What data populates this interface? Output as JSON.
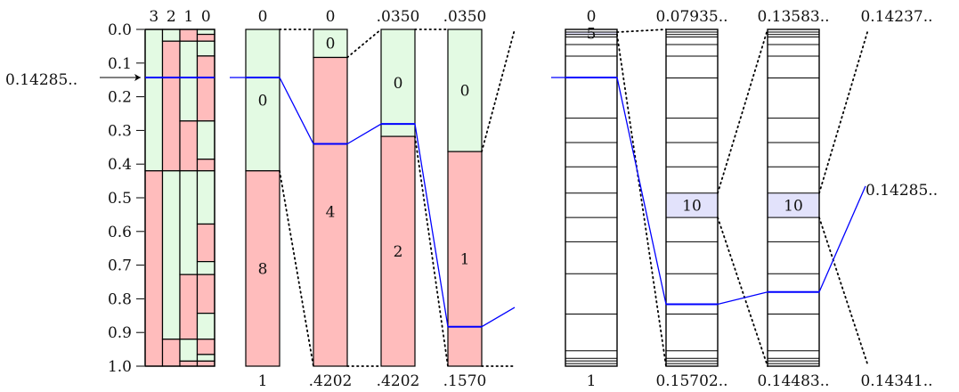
{
  "colors": {
    "green": "#e3fae3",
    "red": "#ffbcbc",
    "blue": "#0000ff",
    "highlight": "#e2e2fb",
    "line": "#000000"
  },
  "axis": {
    "ticks": [
      "0.0",
      "0.1",
      "0.2",
      "0.3",
      "0.4",
      "0.5",
      "0.6",
      "0.7",
      "0.8",
      "0.9",
      "1.0"
    ],
    "input_label": "0.14285..",
    "input_value": 0.142857
  },
  "bit_strip": {
    "headers": [
      "3",
      "2",
      "1",
      "0"
    ],
    "columns": [
      {
        "breaks": [
          0,
          0.42,
          1
        ],
        "colors": [
          "green",
          "red"
        ]
      },
      {
        "breaks": [
          0,
          0.035,
          0.42,
          0.92,
          1
        ],
        "colors": [
          "green",
          "red",
          "green",
          "red"
        ]
      },
      {
        "breaks": [
          0,
          0.035,
          0.272,
          0.42,
          0.728,
          0.92,
          0.985,
          1
        ],
        "colors": [
          "red",
          "green",
          "red",
          "green",
          "red",
          "green",
          "red"
        ]
      },
      {
        "breaks": [
          0,
          0.0147,
          0.035,
          0.079,
          0.272,
          0.3855,
          0.42,
          0.578,
          0.6895,
          0.728,
          0.843,
          0.92,
          0.9653,
          0.985,
          1
        ],
        "colors": [
          "green",
          "red",
          "green",
          "red",
          "green",
          "red",
          "green",
          "red",
          "green",
          "red",
          "green",
          "red",
          "green",
          "red"
        ]
      }
    ]
  },
  "binary_bars": [
    {
      "top": "0",
      "bottom": "1",
      "split": 0.42,
      "upper": "0",
      "lower": "8",
      "line_at": 0.142857
    },
    {
      "top": "0",
      "bottom": ".4202",
      "split": 0.0833,
      "upper": "0",
      "lower": "4",
      "line_at": 0.34
    },
    {
      "top": ".0350",
      "bottom": ".4202",
      "split": 0.3177,
      "upper": "0",
      "lower": "2",
      "line_at": 0.2808
    },
    {
      "top": ".0350",
      "bottom": ".1570",
      "split": 0.3628,
      "upper": "0",
      "lower": "1",
      "line_at": 0.8828
    }
  ],
  "decimal_bars": [
    {
      "top": "0",
      "bottom": "1",
      "digit": "5",
      "digit_index": 1,
      "line_at": 0.142857
    },
    {
      "top": "0.07935..",
      "bottom": "0.15702..",
      "digit": "10",
      "digit_index": 10,
      "line_at": 0.8161
    },
    {
      "top": "0.13583..",
      "bottom": "0.14483..",
      "digit": "10",
      "digit_index": 10,
      "line_at": 0.7798
    }
  ],
  "decimal_bar_cuts": [
    0,
    0.0081,
    0.0153,
    0.0225,
    0.0449,
    0.0794,
    0.1443,
    0.2637,
    0.3359,
    0.4081,
    0.4862,
    0.5585,
    0.6306,
    0.7255,
    0.8451,
    0.9544,
    0.977,
    0.9846,
    0.9925,
    1
  ],
  "final_top": "0.14237..",
  "final_bottom": "0.14341..",
  "final_output": "0.14285.."
}
